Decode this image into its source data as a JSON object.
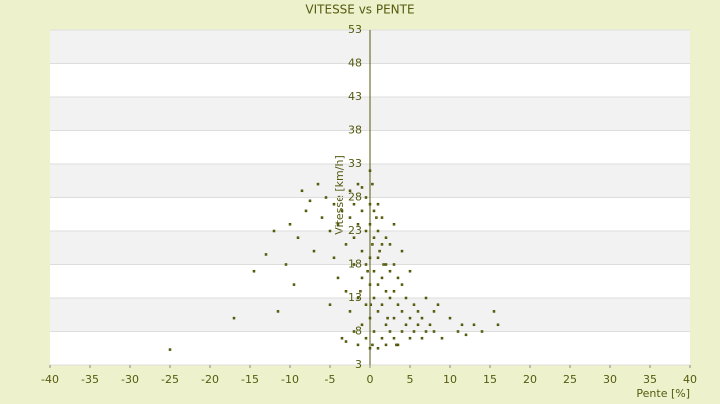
{
  "chart_data": {
    "type": "scatter",
    "title": "VITESSE vs PENTE",
    "x_label": "Pente [%]",
    "y_label": "Vitesse [km/h]",
    "color": "#6b7000",
    "x": [
      -25,
      -17,
      -14.5,
      -13,
      -12,
      -11.5,
      -10.5,
      -10,
      -9.5,
      -9,
      -8.5,
      -8,
      -7.5,
      -7,
      -6.5,
      -6,
      -5.5,
      -5,
      -5,
      -4.5,
      -4.5,
      -4,
      -4,
      -3.5,
      -3.5,
      -3,
      -3,
      -3,
      -2.5,
      -2.5,
      -2.5,
      -2,
      -2,
      -2,
      -2,
      -1.5,
      -1.5,
      -1.5,
      -1.5,
      -1,
      -1,
      -1,
      -1,
      -1,
      -0.5,
      -0.5,
      -0.5,
      -0.5,
      -0.5,
      0,
      0,
      0,
      0,
      0,
      0,
      0,
      0.3,
      0.3,
      0.3,
      0.5,
      0.5,
      0.5,
      0.5,
      0.5,
      1,
      1,
      1,
      1,
      1,
      1,
      1.5,
      1.5,
      1.5,
      1.5,
      1.5,
      2,
      2,
      2,
      2,
      2,
      2.5,
      2.5,
      2.5,
      2.5,
      3,
      3,
      3,
      3,
      3,
      3.5,
      3.5,
      3.5,
      4,
      4,
      4,
      4,
      4.5,
      4.5,
      5,
      5,
      5,
      5.5,
      5.5,
      6,
      6,
      6.5,
      6.5,
      7,
      7,
      7.5,
      8,
      8,
      8.5,
      9,
      10,
      11,
      11.5,
      12,
      13,
      14,
      15.5,
      16,
      1.2,
      0.8,
      -0.3,
      2.2,
      3.3,
      -1.2,
      0.1,
      1.7
    ],
    "values": [
      5.3,
      10,
      17,
      19.5,
      23,
      11,
      18,
      24,
      15,
      22,
      29,
      26,
      27.5,
      20,
      30,
      25,
      28,
      12,
      23,
      27,
      19,
      24,
      16,
      7,
      26,
      6.5,
      21,
      14,
      29,
      11,
      25,
      8,
      18,
      27,
      22,
      6,
      13,
      24,
      30,
      9,
      16,
      20,
      26,
      29.5,
      7,
      12,
      18,
      23,
      28,
      5.5,
      10,
      15,
      19,
      24,
      27,
      32,
      6,
      21,
      30,
      8,
      13,
      17,
      22,
      26,
      5.5,
      11,
      15,
      19,
      23,
      27,
      7,
      12,
      16,
      21,
      25,
      6,
      9,
      14,
      18,
      22,
      8,
      13,
      17,
      21,
      7,
      10,
      14,
      18,
      24,
      6,
      12,
      16,
      8,
      11,
      15,
      20,
      9,
      13,
      7,
      10,
      17,
      8,
      12,
      9,
      11,
      7,
      10,
      8,
      13,
      9,
      8,
      11,
      12,
      7,
      10,
      8,
      9,
      7.5,
      9,
      8,
      11,
      9,
      20,
      25,
      17,
      10,
      6,
      14,
      12,
      18
    ],
    "xlim": [
      -40,
      40
    ],
    "xticks": [
      -40,
      -35,
      -30,
      -25,
      -20,
      -15,
      -10,
      -5,
      0,
      5,
      10,
      15,
      20,
      25,
      30,
      35,
      40
    ],
    "ylim": [
      3,
      53
    ],
    "yticks": [
      3,
      8,
      13,
      18,
      23,
      28,
      33,
      38,
      43,
      48,
      53
    ],
    "grid": true
  }
}
